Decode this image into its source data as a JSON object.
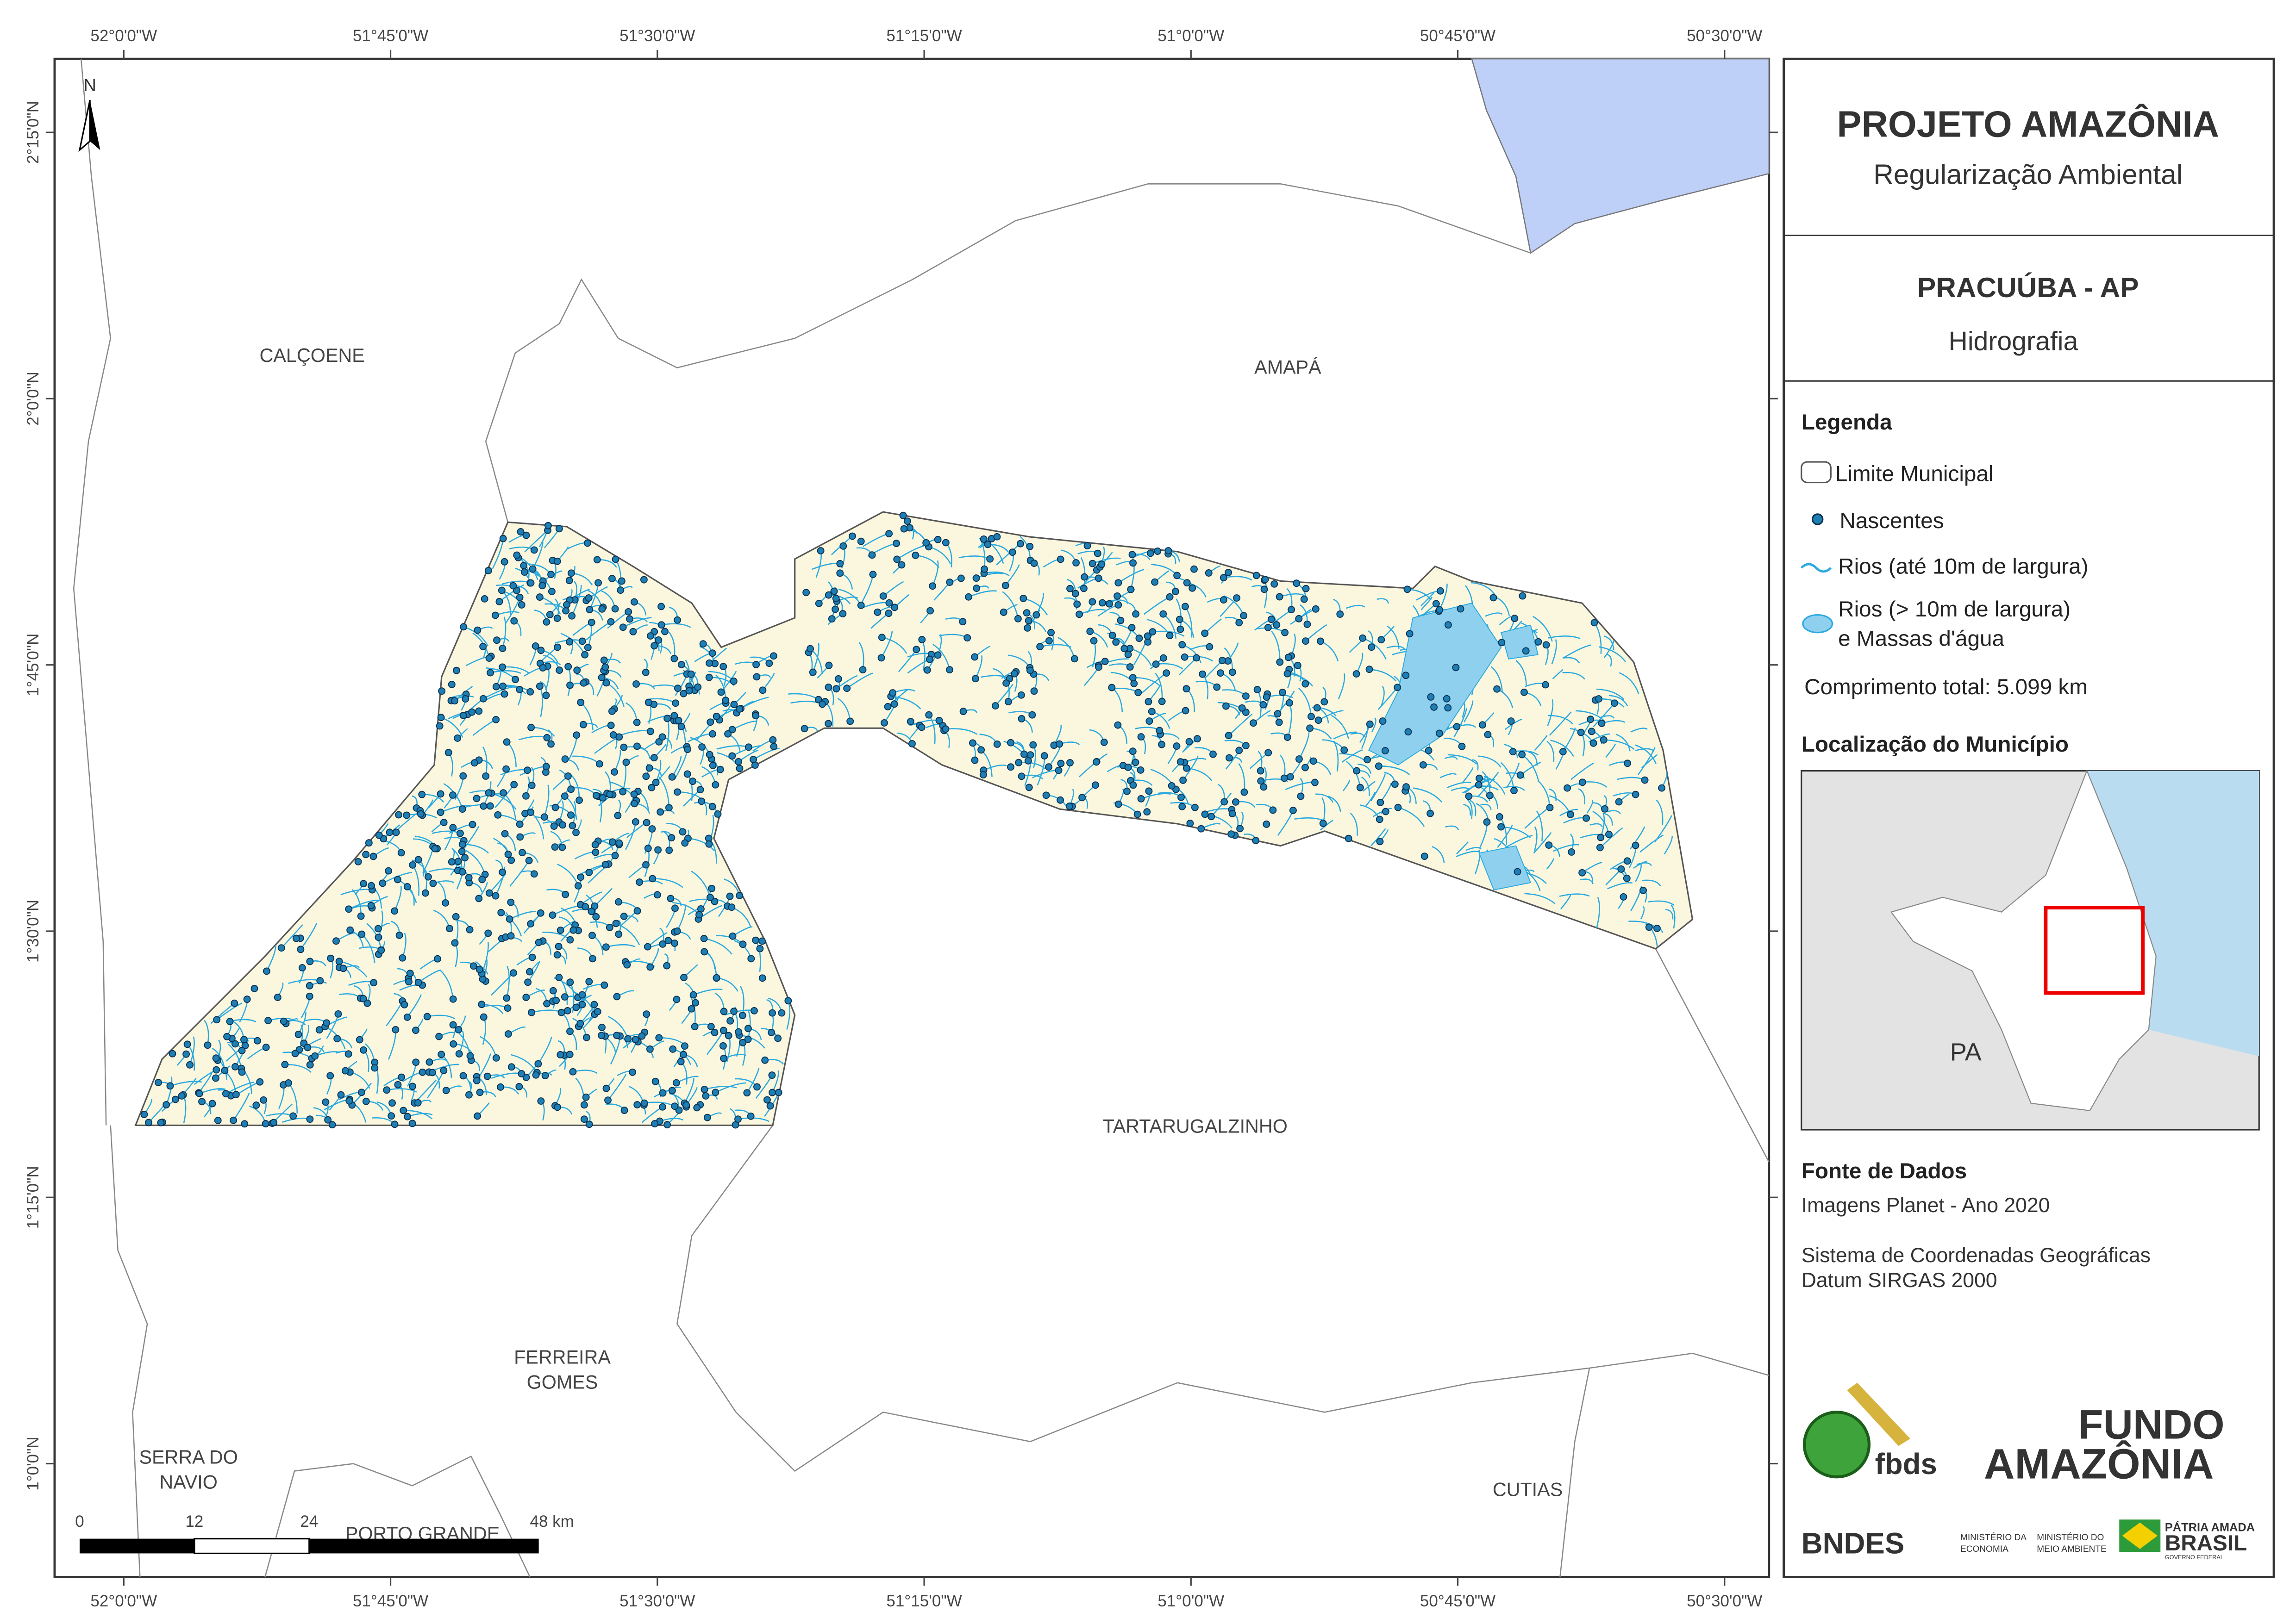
{
  "map": {
    "municipalities": {
      "calcoene": "CALÇOENE",
      "amapa": "AMAPÁ",
      "tartarugalzinho": "TARTARUGALZINHO",
      "ferreira_gomes": [
        "FERREIRA",
        "GOMES"
      ],
      "serra_do_navio": [
        "SERRA DO",
        "NAVIO"
      ],
      "porto_grande": "PORTO GRANDE",
      "cutias": "CUTIAS"
    },
    "longitude_ticks": [
      "52°0'0\"W",
      "51°45'0\"W",
      "51°30'0\"W",
      "51°15'0\"W",
      "51°0'0\"W",
      "50°45'0\"W",
      "50°30'0\"W"
    ],
    "latitude_ticks": [
      "2°15'0\"N",
      "2°0'0\"N",
      "1°45'0\"N",
      "1°30'0\"N",
      "1°15'0\"N",
      "1°0'0\"N"
    ],
    "north": "N",
    "scale_labels": [
      "0",
      "12",
      "24",
      "48 km"
    ]
  },
  "header": {
    "title": "PROJETO AMAZÔNIA",
    "subtitle": "Regularização Ambiental"
  },
  "municipality": {
    "title": "PRACUÚBA - AP",
    "subtitle": "Hidrografia"
  },
  "legend": {
    "title": "Legenda",
    "items": [
      "Limite Municipal",
      "Nascentes",
      "Rios (até 10m de largura)",
      [
        "Rios (> 10m de largura)",
        "e Massas d'água"
      ]
    ],
    "total": "Comprimento total: 5.099 km"
  },
  "location": {
    "title": "Localização do Município",
    "label": "PA"
  },
  "sources": {
    "title": "Fonte de Dados",
    "lines": [
      "Imagens Planet - Ano 2020",
      "Sistema de Coordenadas Geográficas",
      "Datum SIRGAS 2000"
    ]
  },
  "logos": {
    "fbds": "fbds",
    "fundo": "FUNDO",
    "amazonia": "AMAZÔNIA",
    "bndes": "BNDES",
    "min1": [
      "MINISTÉRIO DA",
      "ECONOMIA"
    ],
    "min2": [
      "MINISTÉRIO DO",
      "MEIO AMBIENTE"
    ],
    "patria": "PÁTRIA AMADA",
    "brasil": "BRASIL",
    "gov": "GOVERNO FEDERAL"
  }
}
